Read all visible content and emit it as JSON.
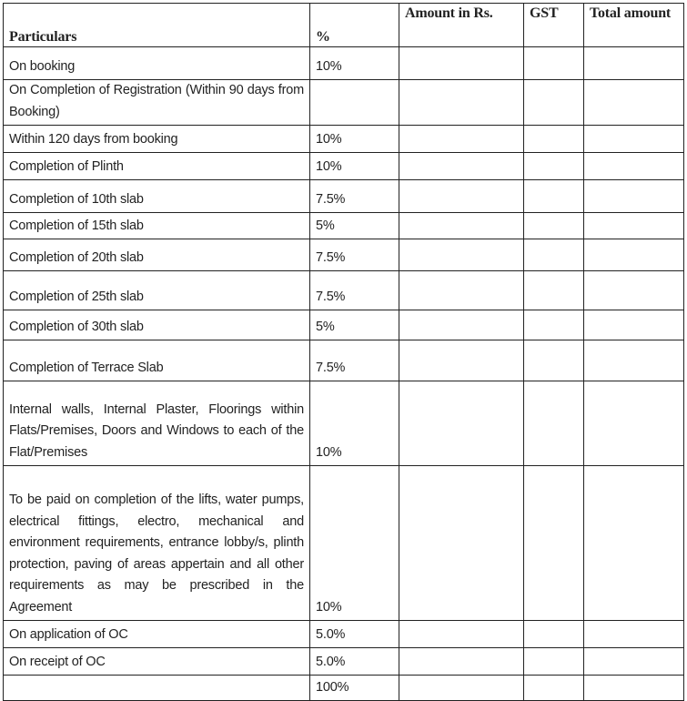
{
  "headers": {
    "particulars": "Particulars",
    "percent": "%",
    "amount": "Amount in Rs.",
    "gst": "GST",
    "total": "Total amount"
  },
  "rows": [
    {
      "particulars": "On booking",
      "percent": "10%"
    },
    {
      "particulars": "On Completion of Registration (Within 90 days from Booking)",
      "percent": ""
    },
    {
      "particulars": "Within 120 days from booking",
      "percent": "10%"
    },
    {
      "particulars": "Completion of Plinth",
      "percent": "10%"
    },
    {
      "particulars": "Completion of 10th slab",
      "percent": "7.5%"
    },
    {
      "particulars": "Completion of 15th slab",
      "percent": "5%"
    },
    {
      "particulars": "Completion of 20th slab",
      "percent": "7.5%"
    },
    {
      "particulars": "Completion of 25th slab",
      "percent": "7.5%"
    },
    {
      "particulars": "Completion of 30th slab",
      "percent": "5%"
    },
    {
      "particulars": "Completion of Terrace Slab",
      "percent": "7.5%"
    },
    {
      "particulars": "Internal walls, Internal Plaster, Floorings within Flats/Premises, Doors and Windows to each of the Flat/Premises",
      "percent": "10%"
    },
    {
      "particulars": "To be paid on completion of the lifts, water pumps, electrical fittings, electro, mechanical and environment requirements, entrance lobby/s, plinth protection, paving of areas appertain and all other requirements as may be prescribed in the Agreement",
      "percent": "10%"
    },
    {
      "particulars": "On application of OC",
      "percent": "5.0%"
    },
    {
      "particulars": "On receipt of OC",
      "percent": "5.0%"
    },
    {
      "particulars": "",
      "percent": "100%"
    }
  ]
}
